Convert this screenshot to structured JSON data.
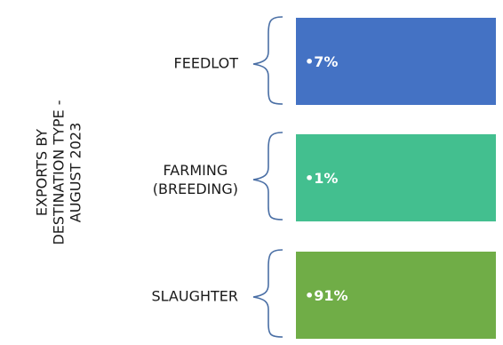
{
  "title": "EXPORTS BY\nDESTINATION TYPE -\nAUGUST 2023",
  "items": [
    {
      "label": "FEEDLOT",
      "value": "•7%",
      "color": "#4472c4"
    },
    {
      "label": "FARMING\n(BREEDING)",
      "value": "•1%",
      "color": "#43bf8f"
    },
    {
      "label": "SLAUGHTER",
      "value": "•91%",
      "color": "#70ad47"
    }
  ]
}
